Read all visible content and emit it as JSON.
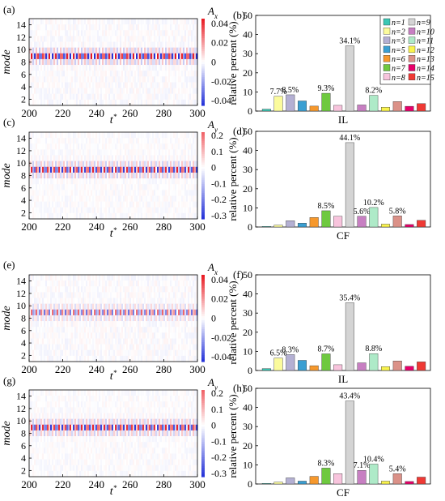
{
  "colors": {
    "n1": "#3ac7b4",
    "n2": "#fbfb9c",
    "n3": "#b4b0d3",
    "n5": "#3a9fd2",
    "n6": "#f6982c",
    "n7": "#6ec93f",
    "n8": "#f8c4dd",
    "n9": "#d4d4d4",
    "n10": "#c77fc2",
    "n11": "#aeeac8",
    "n12": "#f9f34c",
    "n13": "#db9188",
    "n14": "#e7006a",
    "n15": "#ef3934",
    "hm_neg": "#2230d8",
    "hm_zero": "#ffffff",
    "hm_pos": "#e8161e"
  },
  "legend": {
    "col1": [
      "n=1",
      "n=2",
      "n=3",
      "n=5",
      "n=6",
      "n=7",
      "n=8"
    ],
    "col2": [
      "n=9",
      "n=10",
      "n=11",
      "n=12",
      "n=13",
      "n=14",
      "n=15"
    ]
  },
  "chart_data": [
    {
      "panel": "(a)",
      "type": "heatmap",
      "xlabel": "t*",
      "ylabel": "mode",
      "colorbar_title": "Ax",
      "xlim": [
        200,
        300
      ],
      "ylim": [
        1,
        15
      ],
      "xticks": [
        "200",
        "220",
        "240",
        "260",
        "280",
        "300"
      ],
      "yticks": [
        "2",
        "4",
        "6",
        "8",
        "10",
        "12",
        "14"
      ],
      "colorbar_range": [
        -0.045,
        0.045
      ],
      "colorbar_ticks": [
        "0.04",
        "0.02",
        "0",
        "-0.02",
        "-0.04"
      ],
      "dominant_mode": 9,
      "oscillation_cycles": 28,
      "dominant_amplitude": 0.045
    },
    {
      "panel": "(b)",
      "type": "bar",
      "xlabel": "IL",
      "ylabel": "relative percent (%)",
      "ylim": [
        0,
        50
      ],
      "yticks": [
        "0",
        "10",
        "20",
        "30",
        "40",
        "50"
      ],
      "categories": [
        "n=1",
        "n=2",
        "n=3",
        "n=5",
        "n=6",
        "n=7",
        "n=8",
        "n=9",
        "n=10",
        "n=11",
        "n=12",
        "n=13",
        "n=14",
        "n=15"
      ],
      "values": [
        1.0,
        7.7,
        8.5,
        5.3,
        2.6,
        9.3,
        3.0,
        34.1,
        3.2,
        8.2,
        2.0,
        5.0,
        2.5,
        3.9
      ],
      "labels": [
        "",
        "7.7%",
        "8.5%",
        "",
        "",
        "9.3%",
        "",
        "34.1%",
        "",
        "8.2%",
        "",
        "",
        "",
        ""
      ]
    },
    {
      "panel": "(c)",
      "type": "heatmap",
      "xlabel": "t*",
      "ylabel": "mode",
      "colorbar_title": "Ay",
      "xlim": [
        200,
        300
      ],
      "ylim": [
        1,
        15
      ],
      "xticks": [
        "200",
        "220",
        "240",
        "260",
        "280",
        "300"
      ],
      "yticks": [
        "2",
        "4",
        "6",
        "8",
        "10",
        "12",
        "14"
      ],
      "colorbar_range": [
        -0.32,
        0.22
      ],
      "colorbar_ticks": [
        "0.2",
        "0.1",
        "0",
        "-0.1",
        "-0.2",
        "-0.3"
      ],
      "dominant_mode": 9,
      "oscillation_cycles": 30,
      "dominant_amplitude": 0.3
    },
    {
      "panel": "(d)",
      "type": "bar",
      "xlabel": "CF",
      "ylabel": "relative percent (%)",
      "ylim": [
        0,
        50
      ],
      "yticks": [
        "0",
        "10",
        "20",
        "30",
        "40",
        "50"
      ],
      "categories": [
        "n=1",
        "n=2",
        "n=3",
        "n=5",
        "n=6",
        "n=7",
        "n=8",
        "n=9",
        "n=10",
        "n=11",
        "n=12",
        "n=13",
        "n=14",
        "n=15"
      ],
      "values": [
        0.3,
        1.0,
        3.3,
        2.0,
        5.0,
        8.5,
        5.6,
        44.1,
        5.6,
        10.2,
        1.5,
        5.8,
        1.3,
        3.5
      ],
      "labels": [
        "",
        "",
        "",
        "",
        "",
        "8.5%",
        "",
        "44.1%",
        "5.6%",
        "10.2%",
        "",
        "5.8%",
        "",
        ""
      ]
    },
    {
      "panel": "(e)",
      "type": "heatmap",
      "xlabel": "t*",
      "ylabel": "mode",
      "colorbar_title": "Ax",
      "xlim": [
        200,
        300
      ],
      "ylim": [
        1,
        15
      ],
      "xticks": [
        "200",
        "220",
        "240",
        "260",
        "280",
        "300"
      ],
      "yticks": [
        "2",
        "4",
        "6",
        "8",
        "10",
        "12",
        "14"
      ],
      "colorbar_range": [
        -0.045,
        0.045
      ],
      "colorbar_ticks": [
        "0.04",
        "0.02",
        "0",
        "-0.02",
        "-0.04"
      ],
      "dominant_mode": 9,
      "oscillation_cycles": 32,
      "dominant_amplitude": 0.03
    },
    {
      "panel": "(f)",
      "type": "bar",
      "xlabel": "IL",
      "ylabel": "relative percent (%)",
      "ylim": [
        0,
        50
      ],
      "yticks": [
        "0",
        "10",
        "20",
        "30",
        "40",
        "50"
      ],
      "categories": [
        "n=1",
        "n=2",
        "n=3",
        "n=5",
        "n=6",
        "n=7",
        "n=8",
        "n=9",
        "n=10",
        "n=11",
        "n=12",
        "n=13",
        "n=14",
        "n=15"
      ],
      "values": [
        1.0,
        6.5,
        8.3,
        5.3,
        2.5,
        8.7,
        3.0,
        35.4,
        4.0,
        8.8,
        2.0,
        5.0,
        2.2,
        4.5
      ],
      "labels": [
        "",
        "6.5%",
        "8.3%",
        "",
        "",
        "8.7%",
        "",
        "35.4%",
        "",
        "8.8%",
        "",
        "",
        "",
        ""
      ]
    },
    {
      "panel": "(g)",
      "type": "heatmap",
      "xlabel": "t*",
      "ylabel": "mode",
      "colorbar_title": "Ay",
      "xlim": [
        200,
        300
      ],
      "ylim": [
        1,
        15
      ],
      "xticks": [
        "200",
        "220",
        "240",
        "260",
        "280",
        "300"
      ],
      "yticks": [
        "2",
        "4",
        "6",
        "8",
        "10",
        "12",
        "14"
      ],
      "colorbar_range": [
        -0.32,
        0.22
      ],
      "colorbar_ticks": [
        "0.2",
        "0.1",
        "0",
        "-0.1",
        "-0.2",
        "-0.3"
      ],
      "dominant_mode": 9,
      "oscillation_cycles": 30,
      "dominant_amplitude": 0.3
    },
    {
      "panel": "(h)",
      "type": "bar",
      "xlabel": "CF",
      "ylabel": "relative percent (%)",
      "ylim": [
        0,
        50
      ],
      "yticks": [
        "0",
        "10",
        "20",
        "30",
        "40",
        "50"
      ],
      "categories": [
        "n=1",
        "n=2",
        "n=3",
        "n=5",
        "n=6",
        "n=7",
        "n=8",
        "n=9",
        "n=10",
        "n=11",
        "n=12",
        "n=13",
        "n=14",
        "n=15"
      ],
      "values": [
        0.3,
        1.0,
        3.2,
        1.5,
        4.0,
        8.3,
        5.4,
        43.4,
        7.1,
        10.4,
        1.5,
        5.4,
        1.3,
        3.6
      ],
      "labels": [
        "",
        "",
        "",
        "",
        "",
        "8.3%",
        "",
        "43.4%",
        "7.1%",
        "10.4%",
        "",
        "5.4%",
        "",
        ""
      ]
    }
  ]
}
